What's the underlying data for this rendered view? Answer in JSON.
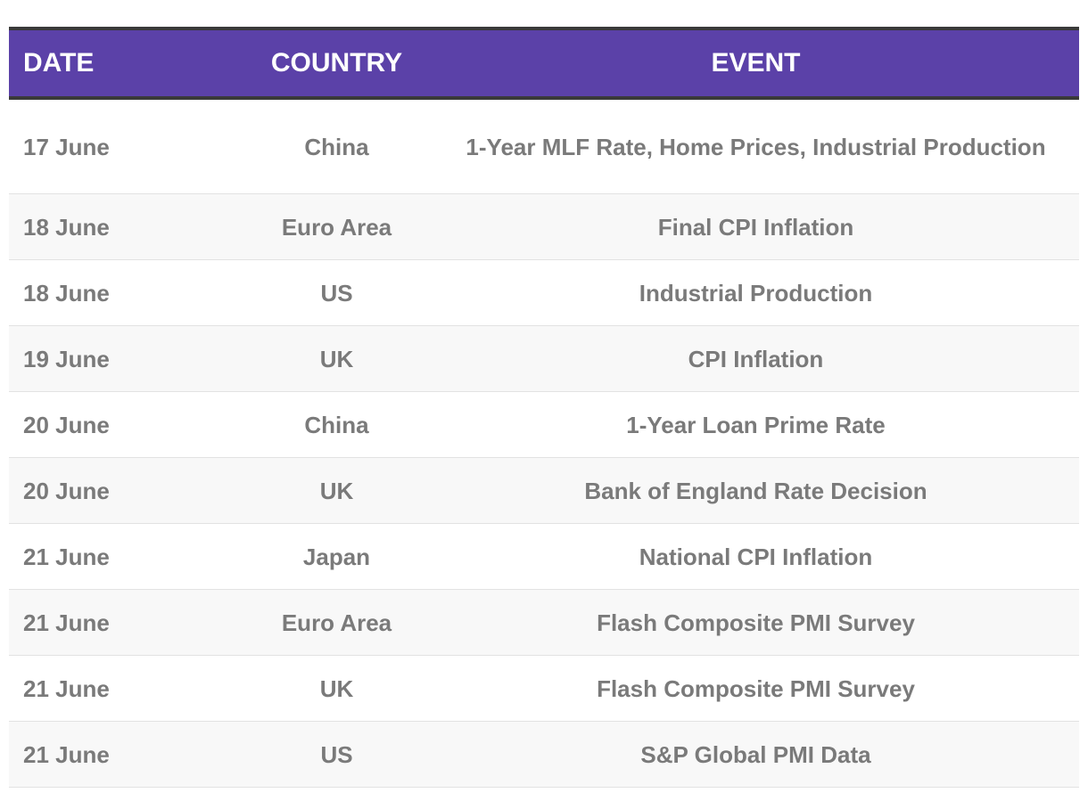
{
  "table": {
    "header": [
      "DATE",
      "COUNTRY",
      "EVENT"
    ],
    "rows": [
      [
        "17 June",
        "China",
        "1-Year MLF Rate, Home Prices, Industrial Production"
      ],
      [
        "18 June",
        "Euro Area",
        "Final CPI Inflation"
      ],
      [
        "18 June",
        "US",
        "Industrial Production"
      ],
      [
        "19 June",
        "UK",
        "CPI Inflation"
      ],
      [
        "20 June",
        "China",
        "1-Year Loan Prime Rate"
      ],
      [
        "20 June",
        "UK",
        "Bank of England Rate Decision"
      ],
      [
        "21 June",
        "Japan",
        "National CPI Inflation"
      ],
      [
        "21 June",
        "Euro Area",
        "Flash Composite PMI Survey"
      ],
      [
        "21 June",
        "UK",
        "Flash Composite PMI Survey"
      ],
      [
        "21 June",
        "US",
        "S&P Global PMI Data"
      ]
    ]
  }
}
